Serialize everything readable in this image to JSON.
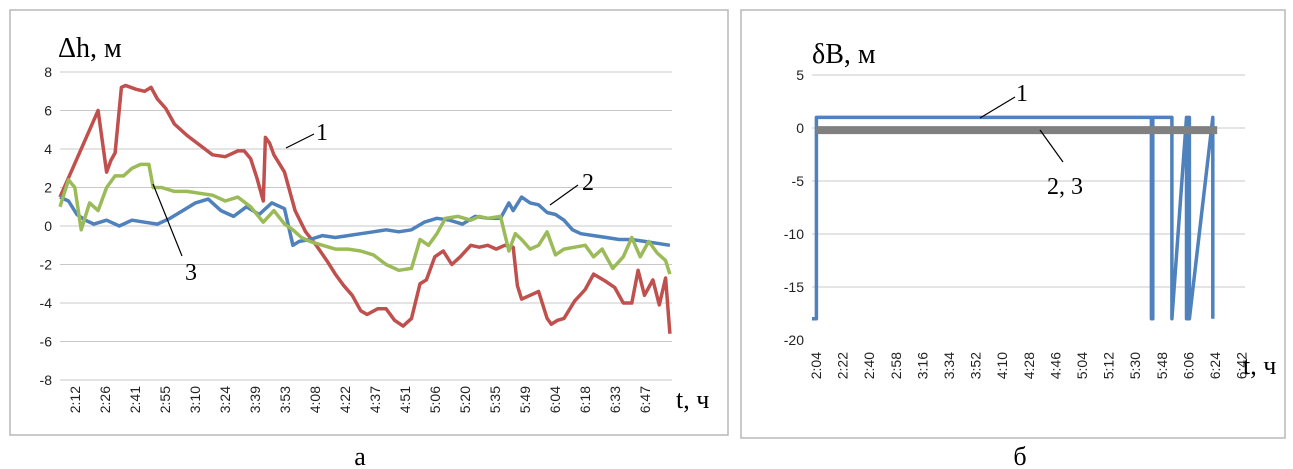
{
  "panels": [
    {
      "caption": "а",
      "chart_data": {
        "type": "line",
        "ylabel": "Δh, м",
        "xlabel": "t, ч",
        "ylim": [
          -8,
          8
        ],
        "yticks": [
          8,
          6,
          4,
          2,
          0,
          -2,
          -4,
          -6,
          -8
        ],
        "xticks": [
          "2:12",
          "2:26",
          "2:41",
          "2:55",
          "3:10",
          "3:24",
          "3:39",
          "3:53",
          "4:08",
          "4:22",
          "4:37",
          "4:51",
          "5:06",
          "5:20",
          "5:35",
          "5:49",
          "6:04",
          "6:18",
          "6:33",
          "6:47"
        ],
        "x_range": [
          "2:12",
          "7:01"
        ],
        "grid": "horizontal",
        "legend": "inline-labels",
        "series": [
          {
            "label": "1",
            "color": "#c0504d",
            "x": [
              "2:12",
              "2:18",
              "2:24",
              "2:28",
              "2:30",
              "2:34",
              "2:36",
              "2:38",
              "2:41",
              "2:43",
              "2:48",
              "2:52",
              "2:55",
              "2:58",
              "3:02",
              "3:06",
              "3:12",
              "3:18",
              "3:24",
              "3:30",
              "3:36",
              "3:39",
              "3:42",
              "3:45",
              "3:48",
              "3:49",
              "3:51",
              "3:53",
              "3:58",
              "4:03",
              "4:08",
              "4:13",
              "4:18",
              "4:22",
              "4:26",
              "4:30",
              "4:34",
              "4:37",
              "4:42",
              "4:46",
              "4:50",
              "4:54",
              "4:58",
              "5:02",
              "5:05",
              "5:09",
              "5:13",
              "5:17",
              "5:21",
              "5:26",
              "5:30",
              "5:34",
              "5:38",
              "5:42",
              "5:46",
              "5:48",
              "5:50",
              "5:54",
              "5:58",
              "6:02",
              "6:04",
              "6:07",
              "6:10",
              "6:15",
              "6:20",
              "6:24",
              "6:30",
              "6:34",
              "6:38",
              "6:42",
              "6:45",
              "6:48",
              "6:52",
              "6:55",
              "6:58",
              "7:00"
            ],
            "y": [
              1.5,
              3,
              4.5,
              5.5,
              6,
              2.8,
              3.4,
              3.8,
              7.2,
              7.3,
              7.1,
              7.0,
              7.2,
              6.6,
              6.1,
              5.3,
              4.7,
              4.2,
              3.7,
              3.6,
              3.9,
              3.9,
              3.5,
              2.5,
              1.3,
              4.6,
              4.3,
              3.7,
              2.8,
              0.8,
              -0.3,
              -1.0,
              -1.8,
              -2.5,
              -3.1,
              -3.6,
              -4.4,
              -4.6,
              -4.3,
              -4.3,
              -4.9,
              -5.2,
              -4.8,
              -3.0,
              -2.8,
              -1.6,
              -1.3,
              -2.0,
              -1.6,
              -1.0,
              -1.1,
              -1.0,
              -1.2,
              -1.0,
              -1.1,
              -3.1,
              -3.8,
              -3.6,
              -3.4,
              -4.8,
              -5.1,
              -4.9,
              -4.8,
              -3.9,
              -3.3,
              -2.5,
              -2.9,
              -3.2,
              -4.0,
              -4.0,
              -2.3,
              -3.6,
              -2.8,
              -4.1,
              -2.7,
              -5.6
            ]
          },
          {
            "label": "2",
            "color": "#4f81bd",
            "x": [
              "2:12",
              "2:16",
              "2:20",
              "2:24",
              "2:28",
              "2:34",
              "2:40",
              "2:46",
              "2:52",
              "2:58",
              "3:04",
              "3:10",
              "3:16",
              "3:22",
              "3:28",
              "3:34",
              "3:40",
              "3:46",
              "3:52",
              "3:58",
              "4:02",
              "4:05",
              "4:10",
              "4:16",
              "4:22",
              "4:28",
              "4:34",
              "4:40",
              "4:46",
              "4:52",
              "4:58",
              "5:04",
              "5:10",
              "5:16",
              "5:22",
              "5:28",
              "5:34",
              "5:40",
              "5:44",
              "5:46",
              "5:50",
              "5:54",
              "5:58",
              "6:02",
              "6:06",
              "6:10",
              "6:14",
              "6:18",
              "6:24",
              "6:30",
              "6:36",
              "6:42",
              "6:48",
              "6:54",
              "7:00"
            ],
            "y": [
              1.5,
              1.3,
              0.6,
              0.3,
              0.1,
              0.3,
              0.0,
              0.3,
              0.2,
              0.1,
              0.4,
              0.8,
              1.2,
              1.4,
              0.8,
              0.5,
              1.0,
              0.6,
              1.2,
              0.9,
              -1.0,
              -0.8,
              -0.7,
              -0.5,
              -0.6,
              -0.5,
              -0.4,
              -0.3,
              -0.2,
              -0.3,
              -0.2,
              0.2,
              0.4,
              0.3,
              0.1,
              0.5,
              0.4,
              0.4,
              1.2,
              0.8,
              1.5,
              1.2,
              1.1,
              0.7,
              0.6,
              0.3,
              -0.2,
              -0.4,
              -0.5,
              -0.6,
              -0.7,
              -0.7,
              -0.8,
              -0.9,
              -1.0
            ]
          },
          {
            "label": "3",
            "color": "#9bbb59",
            "x": [
              "2:12",
              "2:16",
              "2:19",
              "2:22",
              "2:26",
              "2:30",
              "2:34",
              "2:38",
              "2:42",
              "2:46",
              "2:50",
              "2:54",
              "2:56",
              "3:00",
              "3:06",
              "3:12",
              "3:18",
              "3:24",
              "3:30",
              "3:36",
              "3:42",
              "3:48",
              "3:53",
              "3:58",
              "4:02",
              "4:06",
              "4:10",
              "4:16",
              "4:22",
              "4:28",
              "4:34",
              "4:40",
              "4:46",
              "4:52",
              "4:58",
              "5:02",
              "5:06",
              "5:10",
              "5:14",
              "5:20",
              "5:26",
              "5:30",
              "5:34",
              "5:40",
              "5:44",
              "5:47",
              "5:50",
              "5:54",
              "5:58",
              "6:02",
              "6:06",
              "6:10",
              "6:15",
              "6:20",
              "6:24",
              "6:28",
              "6:33",
              "6:38",
              "6:42",
              "6:46",
              "6:50",
              "6:54",
              "6:58",
              "7:00"
            ],
            "y": [
              1.0,
              2.4,
              2.0,
              -0.2,
              1.2,
              0.8,
              2.0,
              2.6,
              2.6,
              3.0,
              3.2,
              3.2,
              2.0,
              2.0,
              1.8,
              1.8,
              1.7,
              1.6,
              1.3,
              1.5,
              1.0,
              0.2,
              0.8,
              0.1,
              -0.2,
              -0.6,
              -0.8,
              -1.0,
              -1.2,
              -1.2,
              -1.3,
              -1.5,
              -2.0,
              -2.3,
              -2.2,
              -0.7,
              -1.0,
              -0.4,
              0.4,
              0.5,
              0.3,
              0.5,
              0.4,
              0.5,
              -1.3,
              -0.4,
              -0.7,
              -1.2,
              -1.0,
              -0.3,
              -1.5,
              -1.2,
              -1.1,
              -1.0,
              -1.6,
              -1.2,
              -2.2,
              -1.6,
              -0.6,
              -1.6,
              -0.8,
              -1.4,
              -1.8,
              -2.5
            ]
          }
        ],
        "annotations": [
          {
            "text": "1",
            "series": "1"
          },
          {
            "text": "2",
            "series": "2"
          },
          {
            "text": "3",
            "series": "3"
          }
        ]
      }
    },
    {
      "caption": "б",
      "chart_data": {
        "type": "line",
        "ylabel": "δB, м",
        "xlabel": "t, ч",
        "ylim": [
          -20,
          5
        ],
        "yticks": [
          5,
          0,
          -5,
          -10,
          -15,
          -20
        ],
        "xticks": [
          "2:04",
          "2:22",
          "2:40",
          "2:58",
          "3:16",
          "3:34",
          "3:52",
          "4:10",
          "4:28",
          "4:46",
          "5:04",
          "5:12",
          "5:30",
          "5:48",
          "6:06",
          "6:24",
          "6:42"
        ],
        "x_range": [
          "2:04",
          "7:00"
        ],
        "grid": "horizontal",
        "legend": "inline-labels",
        "series": [
          {
            "label": "1",
            "color": "#4f81bd",
            "x": [
              "2:04",
              "2:07",
              "2:07",
              "5:56",
              "5:56",
              "5:57",
              "5:57",
              "6:10",
              "6:10",
              "6:20",
              "6:20",
              "6:21",
              "6:21",
              "6:22",
              "6:22",
              "6:38",
              "6:38"
            ],
            "y": [
              -18,
              -18,
              1,
              1,
              -18,
              -18,
              1,
              1,
              -18,
              1,
              -18,
              -18,
              1,
              1,
              -18,
              1,
              -18
            ]
          },
          {
            "label": "2, 3",
            "color": "#808080",
            "x": [
              "2:07",
              "6:41"
            ],
            "y": [
              -0.2,
              -0.2
            ]
          }
        ],
        "annotations": [
          {
            "text": "1",
            "series": "1"
          },
          {
            "text": "2, 3",
            "series": "2, 3"
          }
        ]
      }
    }
  ]
}
